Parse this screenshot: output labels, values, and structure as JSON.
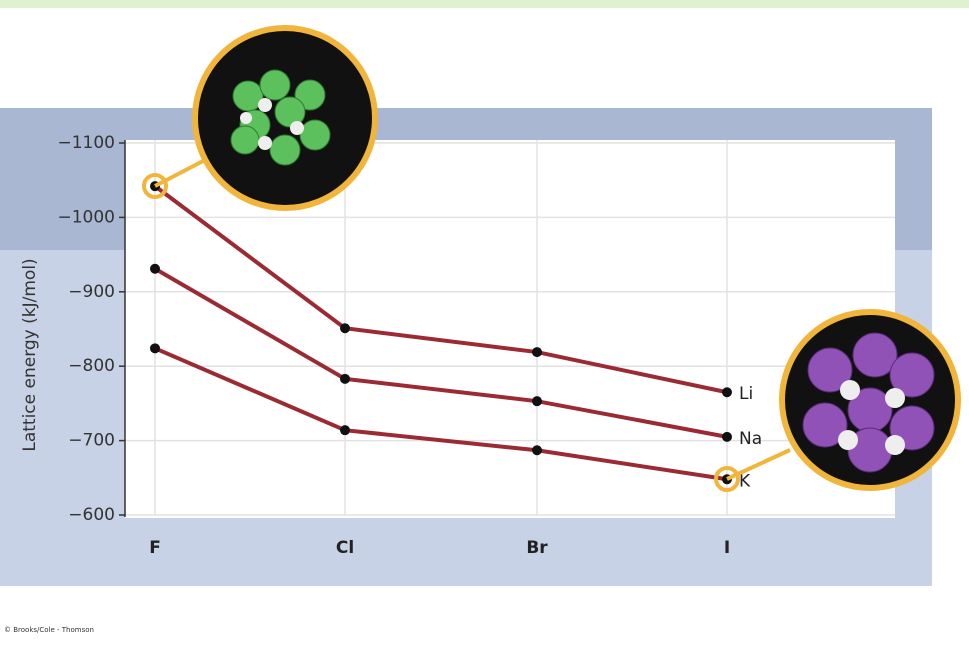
{
  "chart_data": {
    "type": "line",
    "y_label": "Lattice energy (kJ/mol)",
    "credit": "© Brooks/Cole - Thomson",
    "categories": [
      "F",
      "Cl",
      "Br",
      "I"
    ],
    "series": [
      {
        "name": "Li",
        "color": "#9b2a33",
        "values": [
          -1042,
          -851,
          -819,
          -765
        ]
      },
      {
        "name": "Na",
        "color": "#9b2a33",
        "values": [
          -931,
          -783,
          -753,
          -705
        ]
      },
      {
        "name": "K",
        "color": "#9b2a33",
        "values": [
          -824,
          -714,
          -687,
          -648
        ]
      }
    ],
    "ylim": [
      -600,
      -1100
    ],
    "yticks": [
      {
        "value": -1100,
        "label": "−1100"
      },
      {
        "value": -1000,
        "label": "−1000"
      },
      {
        "value": -900,
        "label": "−900"
      },
      {
        "value": -800,
        "label": "−800"
      },
      {
        "value": -700,
        "label": "−700"
      },
      {
        "value": -600,
        "label": "−600"
      }
    ],
    "grid": true
  }
}
